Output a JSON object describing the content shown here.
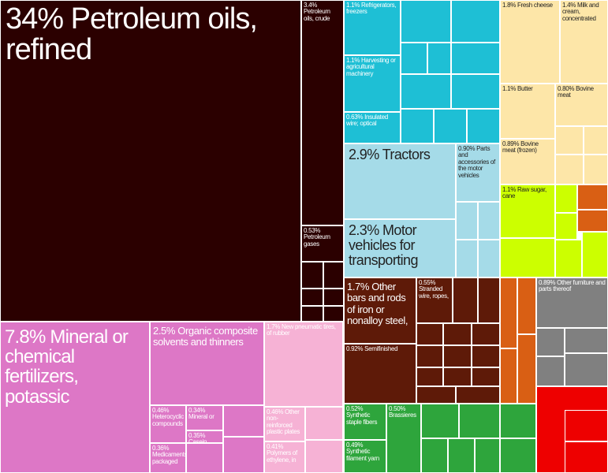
{
  "colors": {
    "petroleum": "#2b0000",
    "chemicals": "#dd77c6",
    "chemicals_light": "#f6b2d5",
    "machinery": "#1ebfd5",
    "vehicles": "#a5dbe8",
    "dairy": "#fde6a8",
    "vegetable": "#ccff00",
    "metals": "#5e1a08",
    "textiles": "#2ea53c",
    "misc_orange": "#d95f14",
    "misc_grey": "#808080",
    "misc_red": "#ee0000"
  },
  "chart_data": {
    "type": "treemap",
    "value_unit": "% of exports",
    "items": [
      {
        "label": "34% Petroleum oils, refined",
        "value": 34
      },
      {
        "label": "3.4% Petroleum oils, crude",
        "value": 3.4
      },
      {
        "label": "0.53% Petroleum gases",
        "value": 0.53
      },
      {
        "label": "7.8% Mineral or chemical fertilizers, potassic",
        "value": 7.8
      },
      {
        "label": "2.5% Organic composite solvents and thinners",
        "value": 2.5
      },
      {
        "label": "1.7% New pneumatic tires, of rubber",
        "value": 1.7
      },
      {
        "label": "0.46% Heterocyclic compounds",
        "value": 0.46
      },
      {
        "label": "0.34% Mineral or",
        "value": 0.34
      },
      {
        "label": "0.35% Casein",
        "value": 0.35
      },
      {
        "label": "0.36% Medicaments packaged",
        "value": 0.36
      },
      {
        "label": "0.46% Other non-reinforced plastic plates",
        "value": 0.46
      },
      {
        "label": "0.41% Polymers of ethylene, in",
        "value": 0.41
      },
      {
        "label": "1.1% Refrigerators, freezers",
        "value": 1.1
      },
      {
        "label": "1.1% Harvesting or agricultural machinery",
        "value": 1.1
      },
      {
        "label": "0.63% Insulated wire; optical",
        "value": 0.63
      },
      {
        "label": "2.9% Tractors",
        "value": 2.9
      },
      {
        "label": "0.90% Parts and accessories of the motor vehicles",
        "value": 0.9
      },
      {
        "label": "2.3% Motor vehicles for transporting",
        "value": 2.3
      },
      {
        "label": "1.8% Fresh cheese",
        "value": 1.8
      },
      {
        "label": "1.4% Milk and cream, concentrated",
        "value": 1.4
      },
      {
        "label": "1.1% Butter",
        "value": 1.1
      },
      {
        "label": "0.80% Bovine meat",
        "value": 0.8
      },
      {
        "label": "0.89% Bovine meat (frozen)",
        "value": 0.89
      },
      {
        "label": "1.1% Raw sugar, cane",
        "value": 1.1
      },
      {
        "label": "1.7% Other bars and rods of iron or nonalloy steel,",
        "value": 1.7
      },
      {
        "label": "0.55% Stranded wire, ropes,",
        "value": 0.55
      },
      {
        "label": "0.92% Semifinished",
        "value": 0.92
      },
      {
        "label": "0.52% Synthetic staple fibers",
        "value": 0.52
      },
      {
        "label": "0.50% Brassieres",
        "value": 0.5
      },
      {
        "label": "0.49% Synthetic filament yarn",
        "value": 0.49
      },
      {
        "label": "0.89% Other furniture and parts thereof",
        "value": 0.89
      }
    ]
  },
  "labels": {
    "petroleum_refined": "34% Petroleum oils, refined",
    "petroleum_crude": "3.4% Petroleum oils, crude",
    "petroleum_gases": "0.53% Petroleum gases",
    "fertilizers": "7.8% Mineral or chemical fertilizers, potassic",
    "solvents": "2.5% Organic composite solvents and thinners",
    "tires": "1.7% New pneumatic tires, of rubber",
    "heterocyclic": "0.46% Heterocyclic compounds",
    "mineral": "0.34% Mineral or",
    "casein": "0.35% Casein",
    "medicaments": "0.36% Medicaments packaged",
    "plastic_plates": "0.46% Other non-reinforced plastic plates",
    "polymers": "0.41% Polymers of ethylene, in",
    "refrigerators": "1.1% Refrigerators, freezers",
    "harvesting": "1.1% Harvesting or agricultural machinery",
    "insulated_wire": "0.63% Insulated wire; optical",
    "tractors": "2.9% Tractors",
    "parts": "0.90% Parts and accessories of the motor vehicles",
    "motor_vehicles": "2.3% Motor vehicles for transporting",
    "fresh_cheese": "1.8% Fresh cheese",
    "milk_cream": "1.4% Milk and cream, concentrated",
    "butter": "1.1% Butter",
    "bovine_meat": "0.80% Bovine meat",
    "bovine_frozen": "0.89% Bovine meat (frozen)",
    "raw_sugar": "1.1% Raw sugar, cane",
    "iron_bars": "1.7% Other bars and rods of iron or nonalloy steel,",
    "stranded_wire": "0.55% Stranded wire, ropes,",
    "semifinished": "0.92% Semifinished",
    "staple_fibers": "0.52% Synthetic staple fibers",
    "brassieres": "0.50% Brassieres",
    "filament_yarn": "0.49% Synthetic filament yarn",
    "furniture": "0.89% Other furniture and parts thereof"
  }
}
